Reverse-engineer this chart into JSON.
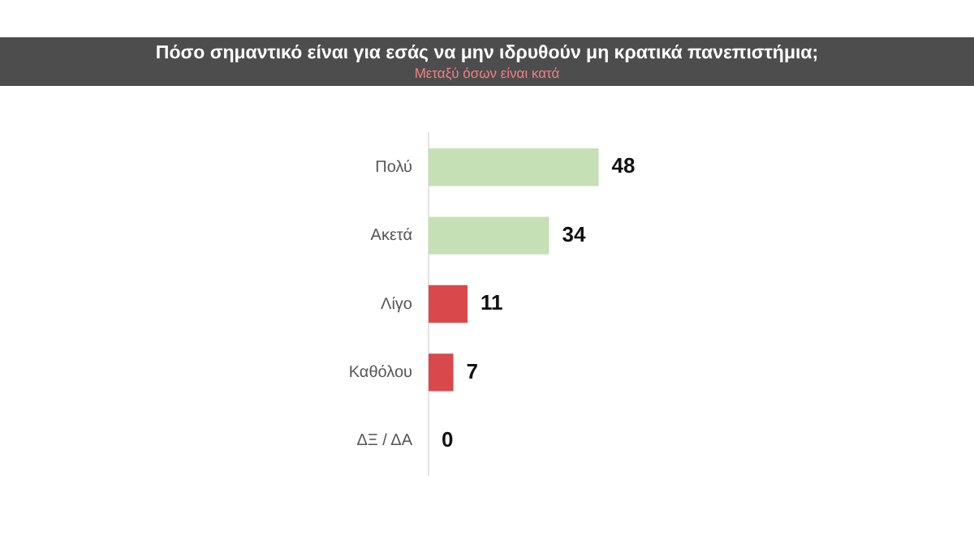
{
  "chart_data": {
    "type": "bar",
    "orientation": "horizontal",
    "title": "Πόσο σημαντικό είναι για εσάς να μην ιδρυθούν μη κρατικά πανεπιστήμια;",
    "subtitle": "Μεταξύ όσων είναι κατά",
    "categories": [
      "Πολύ",
      "Ακετά",
      "Λίγο",
      "Καθόλου",
      "ΔΞ / ΔΑ"
    ],
    "values": [
      48,
      34,
      11,
      7,
      0
    ],
    "colors": [
      "#c5e0b4",
      "#c5e0b4",
      "#d9484a",
      "#d9484a",
      "#d9484a"
    ],
    "data_labels": true,
    "legend": false,
    "grid": false
  }
}
